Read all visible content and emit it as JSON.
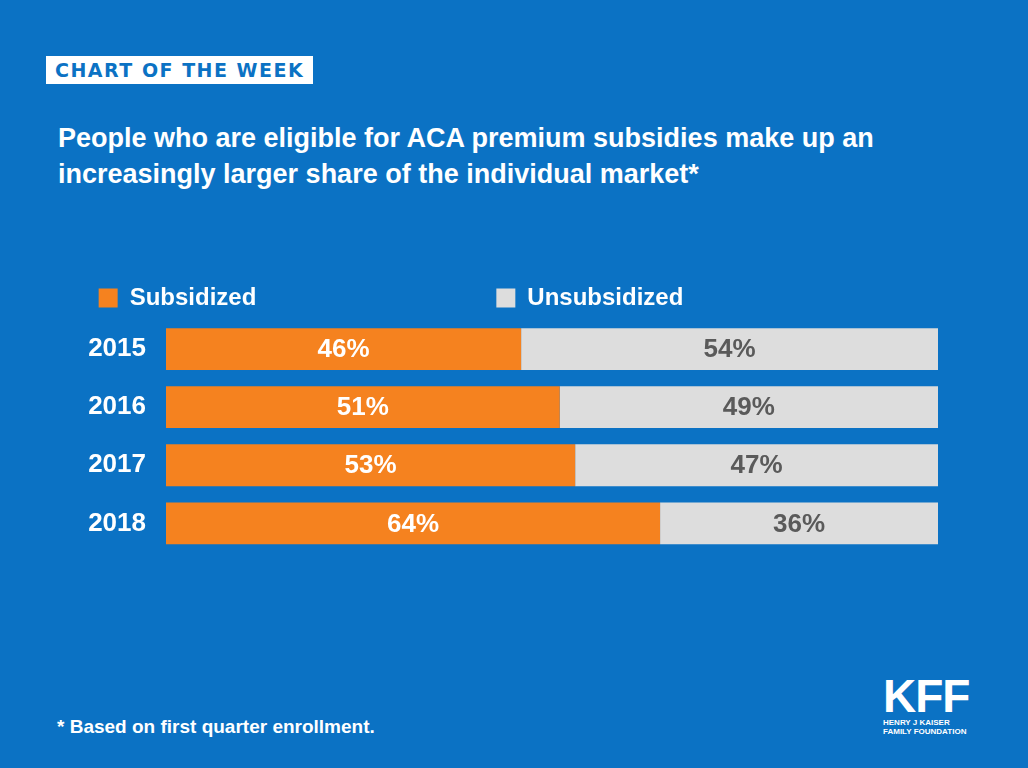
{
  "chart_data": {
    "type": "bar",
    "orientation": "horizontal",
    "stacked": true,
    "data_labels": true,
    "title": "People who are eligible for ACA premium subsidies make up an increasingly larger share of the individual market*",
    "annotations": [
      "CHART OF THE WEEK",
      "* Based on first quarter enrollment.",
      "KFF",
      "HENRY J KAISER FAMILY FOUNDATION"
    ],
    "categories": [
      "2015",
      "2016",
      "2017",
      "2018"
    ],
    "series": [
      {
        "name": "Subsidized",
        "color": "#f5821f",
        "values": [
          46,
          51,
          53,
          64
        ],
        "value_labels": [
          "46%",
          "51%",
          "53%",
          "64%"
        ]
      },
      {
        "name": "Unsubsidized",
        "color": "#dddddd",
        "values": [
          54,
          49,
          47,
          36
        ],
        "value_labels": [
          "54%",
          "49%",
          "47%",
          "36%"
        ]
      }
    ],
    "xlim": [
      0,
      100
    ],
    "grid": false,
    "legend": "top",
    "tick_labels": "y"
  }
}
